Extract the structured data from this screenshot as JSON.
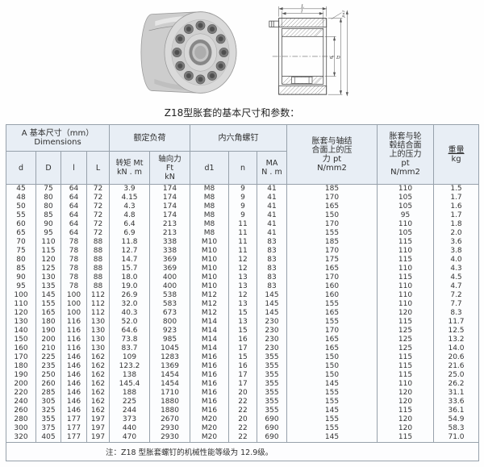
{
  "page": {
    "title": "Z18型胀套的基本尺寸和参数：",
    "note": "注：Z18 型胀套螺钉的机械性能等级为 12.9级。"
  },
  "colors": {
    "header_bg": "#e8eef5",
    "table_border": "#97a1ab",
    "page_bg": "#fefefe"
  },
  "drawing": {
    "dim_L": "L",
    "dim_l": "l",
    "dim_d": "d",
    "dim_D": "D",
    "dim_zd": "z×d"
  },
  "table": {
    "header": {
      "dims_group": "A 基本尺寸（mm）\nDimensions",
      "load_group": "额定负荷",
      "screw_group": "内六角螺钉",
      "col_d": "d",
      "col_D": "D",
      "col_l": "l",
      "col_L": "L",
      "col_mt": "转矩 Mt\nkN . m",
      "col_ft": "轴向力\nFt\nkN",
      "col_d1": "d1",
      "col_n": "n",
      "col_ma": "MA\nN . m",
      "col_p1": "胀套与轴结\n合面上的压\n力 pt\nN/mm2",
      "col_p2": "胀套与轮\n毂结合面\n上的压力\npt\nN/mm2",
      "col_weight_title": "重量",
      "col_weight_unit": "kg"
    },
    "rows": [
      [
        "45",
        "75",
        "64",
        "72",
        "3.9",
        "174",
        "M8",
        "9",
        "41",
        "185",
        "110",
        "1.5"
      ],
      [
        "48",
        "80",
        "64",
        "72",
        "4.15",
        "174",
        "M8",
        "9",
        "41",
        "170",
        "105",
        "1.7"
      ],
      [
        "50",
        "80",
        "64",
        "72",
        "4.3",
        "174",
        "M8",
        "9",
        "41",
        "165",
        "105",
        "1.6"
      ],
      [
        "55",
        "85",
        "64",
        "72",
        "4.8",
        "174",
        "M8",
        "9",
        "41",
        "150",
        "95",
        "1.7"
      ],
      [
        "60",
        "90",
        "64",
        "72",
        "6.4",
        "213",
        "M8",
        "11",
        "41",
        "170",
        "110",
        "1.8"
      ],
      [
        "65",
        "95",
        "64",
        "72",
        "6.9",
        "213",
        "M8",
        "11",
        "41",
        "155",
        "105",
        "2.0"
      ],
      [
        "70",
        "110",
        "78",
        "88",
        "11.8",
        "338",
        "M10",
        "11",
        "83",
        "185",
        "115",
        "3.6"
      ],
      [
        "75",
        "115",
        "78",
        "88",
        "12.7",
        "338",
        "M10",
        "11",
        "83",
        "170",
        "110",
        "3.8"
      ],
      [
        "80",
        "120",
        "78",
        "88",
        "14.7",
        "369",
        "M10",
        "12",
        "83",
        "175",
        "115",
        "4.0"
      ],
      [
        "85",
        "125",
        "78",
        "88",
        "15.7",
        "369",
        "M10",
        "12",
        "83",
        "165",
        "110",
        "4.3"
      ],
      [
        "90",
        "130",
        "78",
        "88",
        "18.0",
        "400",
        "M10",
        "13",
        "83",
        "170",
        "115",
        "4.5"
      ],
      [
        "95",
        "135",
        "78",
        "88",
        "19.0",
        "400",
        "M10",
        "13",
        "83",
        "160",
        "110",
        "4.7"
      ],
      [
        "100",
        "145",
        "100",
        "112",
        "26.9",
        "538",
        "M12",
        "12",
        "145",
        "160",
        "110",
        "7.2"
      ],
      [
        "110",
        "155",
        "100",
        "112",
        "32.0",
        "583",
        "M12",
        "13",
        "145",
        "155",
        "110",
        "7.7"
      ],
      [
        "120",
        "165",
        "100",
        "112",
        "40.3",
        "673",
        "M12",
        "15",
        "145",
        "165",
        "120",
        "8.3"
      ],
      [
        "130",
        "180",
        "116",
        "130",
        "52.0",
        "800",
        "M14",
        "13",
        "230",
        "155",
        "115",
        "11.7"
      ],
      [
        "140",
        "190",
        "116",
        "130",
        "64.6",
        "923",
        "M14",
        "15",
        "230",
        "170",
        "125",
        "12.5"
      ],
      [
        "150",
        "200",
        "116",
        "130",
        "73.8",
        "985",
        "M14",
        "16",
        "230",
        "165",
        "125",
        "13.2"
      ],
      [
        "160",
        "210",
        "116",
        "130",
        "83.7",
        "1045",
        "M14",
        "17",
        "230",
        "165",
        "125",
        "14.0"
      ],
      [
        "170",
        "225",
        "146",
        "162",
        "109",
        "1283",
        "M16",
        "15",
        "355",
        "150",
        "115",
        "20.6"
      ],
      [
        "180",
        "235",
        "146",
        "162",
        "123.2",
        "1369",
        "M16",
        "16",
        "355",
        "150",
        "115",
        "21.6"
      ],
      [
        "190",
        "250",
        "146",
        "162",
        "138",
        "1454",
        "M16",
        "17",
        "355",
        "150",
        "115",
        "25.0"
      ],
      [
        "200",
        "260",
        "146",
        "162",
        "145.4",
        "1454",
        "M16",
        "17",
        "355",
        "145",
        "110",
        "26.2"
      ],
      [
        "220",
        "285",
        "146",
        "162",
        "188",
        "1710",
        "M16",
        "20",
        "355",
        "155",
        "120",
        "31.1"
      ],
      [
        "240",
        "305",
        "146",
        "162",
        "225",
        "1880",
        "M16",
        "22",
        "355",
        "155",
        "120",
        "33.6"
      ],
      [
        "260",
        "325",
        "146",
        "162",
        "244",
        "1880",
        "M16",
        "22",
        "355",
        "145",
        "115",
        "36.1"
      ],
      [
        "280",
        "355",
        "177",
        "197",
        "373",
        "2670",
        "M20",
        "20",
        "690",
        "155",
        "120",
        "54.9"
      ],
      [
        "300",
        "375",
        "177",
        "197",
        "440",
        "2930",
        "M20",
        "22",
        "690",
        "155",
        "120",
        "58.3"
      ],
      [
        "320",
        "405",
        "177",
        "197",
        "470",
        "2930",
        "M20",
        "22",
        "690",
        "145",
        "115",
        "71.0"
      ]
    ]
  }
}
